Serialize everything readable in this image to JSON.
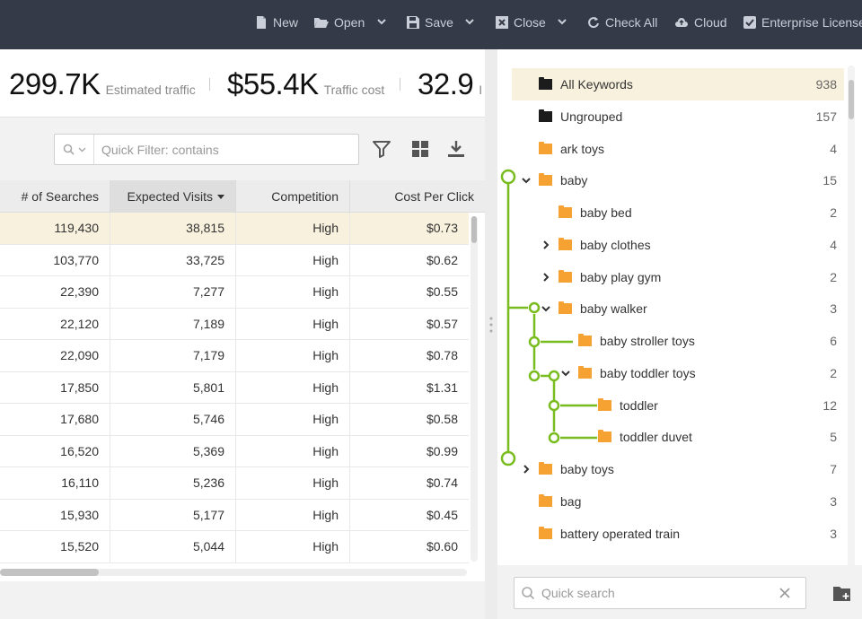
{
  "toolbar": {
    "new_label": "New",
    "open_label": "Open",
    "save_label": "Save",
    "close_label": "Close",
    "checkall_label": "Check All",
    "cloud_label": "Cloud",
    "license_label": "Enterprise License"
  },
  "metrics": [
    {
      "value": "299.7K",
      "label": "Estimated traffic"
    },
    {
      "value": "$55.4K",
      "label": "Traffic cost"
    },
    {
      "value": "32.9",
      "label": "I"
    }
  ],
  "filter": {
    "placeholder": "Quick Filter: contains"
  },
  "grid": {
    "columns": [
      "# of Searches",
      "Expected Visits",
      "Competition",
      "Cost Per Click"
    ],
    "rows": [
      [
        "119,430",
        "38,815",
        "High",
        "$0.73"
      ],
      [
        "103,770",
        "33,725",
        "High",
        "$0.62"
      ],
      [
        "22,390",
        "7,277",
        "High",
        "$0.55"
      ],
      [
        "22,120",
        "7,189",
        "High",
        "$0.57"
      ],
      [
        "22,090",
        "7,179",
        "High",
        "$0.78"
      ],
      [
        "17,850",
        "5,801",
        "High",
        "$1.31"
      ],
      [
        "17,680",
        "5,746",
        "High",
        "$0.58"
      ],
      [
        "16,520",
        "5,369",
        "High",
        "$0.99"
      ],
      [
        "16,110",
        "5,236",
        "High",
        "$0.74"
      ],
      [
        "15,930",
        "5,177",
        "High",
        "$0.45"
      ],
      [
        "15,520",
        "5,044",
        "High",
        "$0.60"
      ]
    ]
  },
  "tree": {
    "items": [
      {
        "label": "All Keywords",
        "count": "938"
      },
      {
        "label": "Ungrouped",
        "count": "157"
      },
      {
        "label": "ark toys",
        "count": "4"
      },
      {
        "label": "baby",
        "count": "15"
      },
      {
        "label": "baby bed",
        "count": "2"
      },
      {
        "label": "baby clothes",
        "count": "4"
      },
      {
        "label": "baby play gym",
        "count": "2"
      },
      {
        "label": "baby walker",
        "count": "3"
      },
      {
        "label": "baby stroller toys",
        "count": "6"
      },
      {
        "label": "baby toddler toys",
        "count": "2"
      },
      {
        "label": "toddler",
        "count": "12"
      },
      {
        "label": "toddler duvet",
        "count": "5"
      },
      {
        "label": "baby toys",
        "count": "7"
      },
      {
        "label": "bag",
        "count": "3"
      },
      {
        "label": "battery operated train",
        "count": "3"
      }
    ]
  },
  "search": {
    "placeholder": "Quick search"
  },
  "colors": {
    "toolbar": "#343a47",
    "accent_green": "#78bc1e",
    "folder": "#f5a232",
    "selected_row": "#f8f1dd"
  }
}
